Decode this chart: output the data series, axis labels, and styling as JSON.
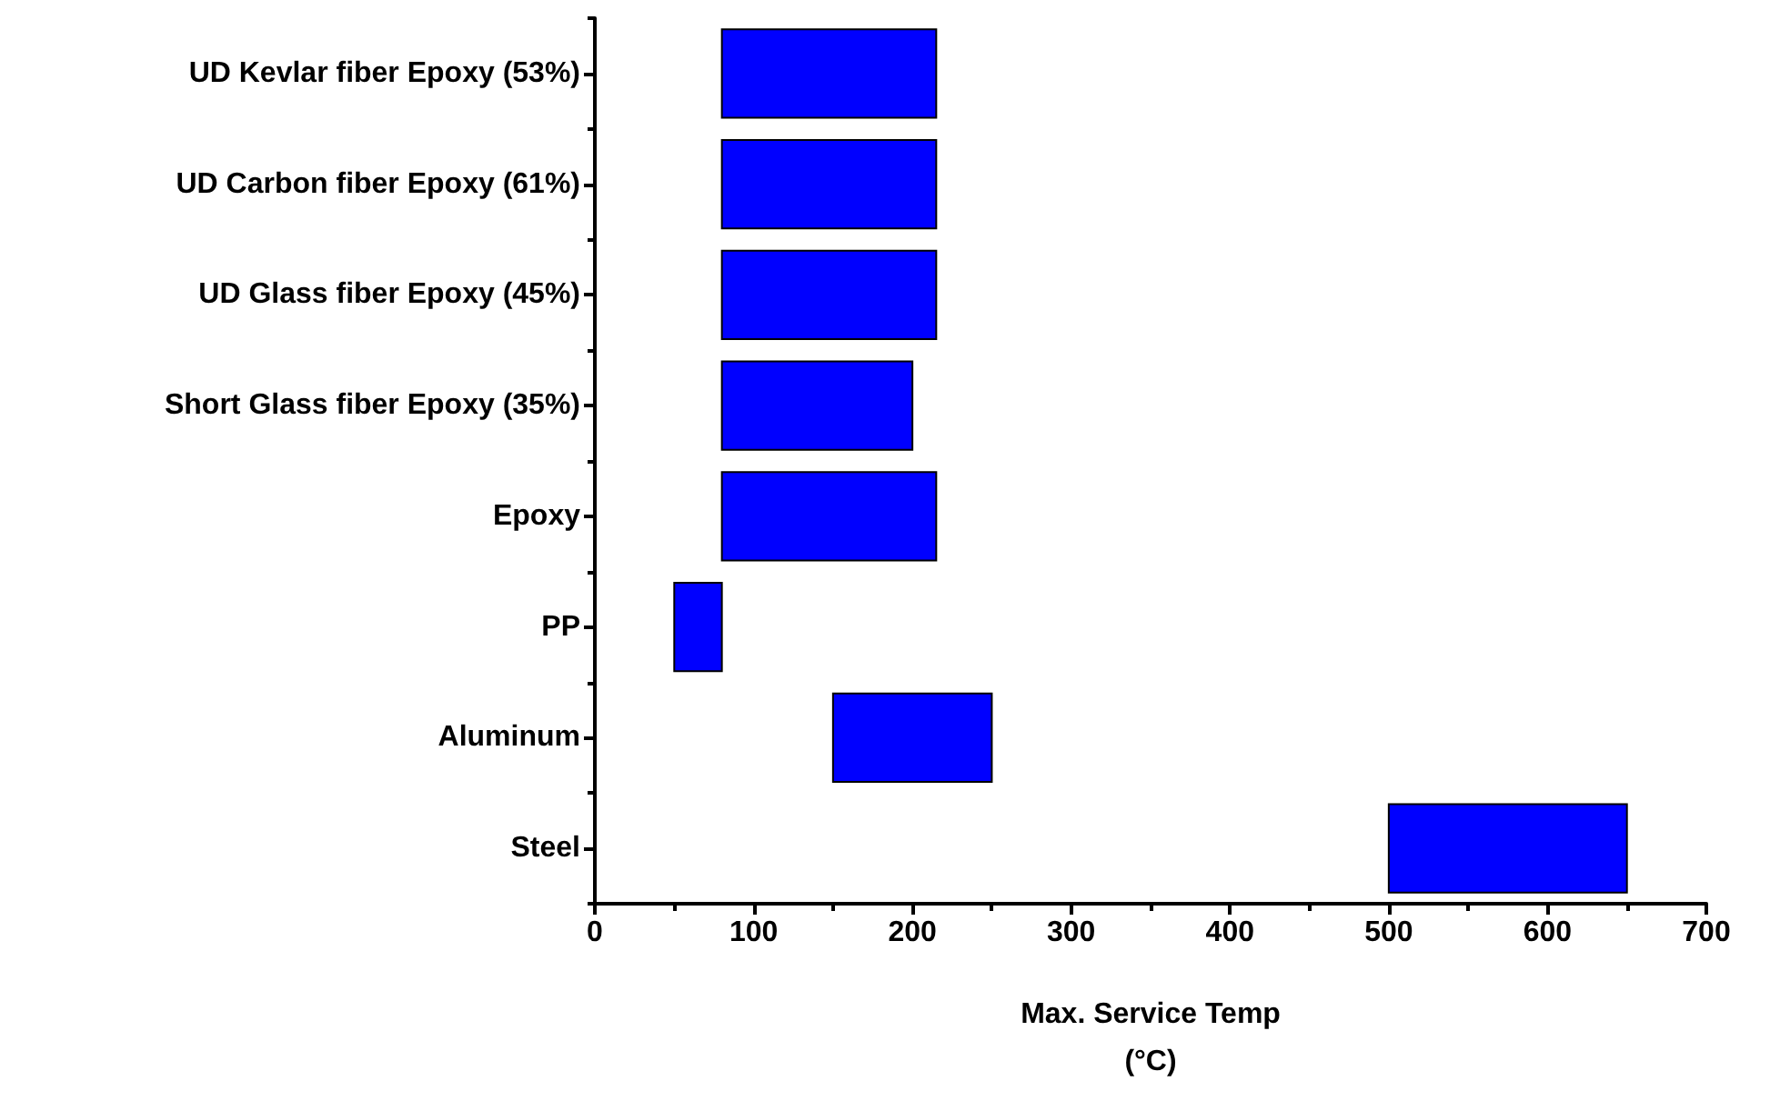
{
  "chart_data": {
    "type": "bar",
    "orientation": "horizontal",
    "xlabel": "Max. Service Temp\n(°C)",
    "categories": [
      "UD Kevlar fiber Epoxy (53%)",
      "UD Carbon fiber Epoxy (61%)",
      "UD Glass fiber Epoxy (45%)",
      "Short Glass fiber Epoxy (35%)",
      "Epoxy",
      "PP",
      "Aluminum",
      "Steel"
    ],
    "base": [
      80,
      80,
      80,
      80,
      80,
      50,
      150,
      500
    ],
    "values": [
      135,
      135,
      135,
      120,
      135,
      30,
      100,
      150
    ],
    "color": "#0000ff",
    "xlim": [
      0,
      700
    ],
    "xticks": [
      0,
      100,
      200,
      300,
      400,
      500,
      600,
      700
    ],
    "grid": false
  }
}
